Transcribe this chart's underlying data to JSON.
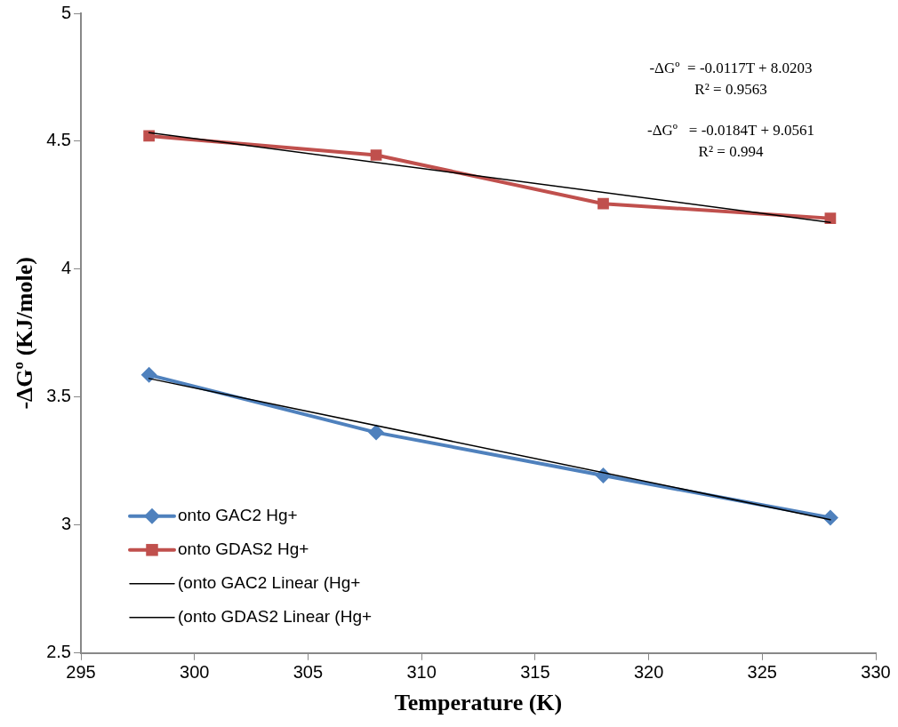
{
  "chart_data": {
    "type": "line",
    "xlabel": "Temperature (K)",
    "ylabel": "-ΔGº (KJ/mole)",
    "xlim": [
      295,
      330
    ],
    "xticks": [
      295,
      300,
      305,
      310,
      315,
      320,
      325,
      330
    ],
    "ylim": [
      2.5,
      5
    ],
    "yticks": [
      2.5,
      3,
      3.5,
      4,
      4.5,
      5
    ],
    "grid": false,
    "legend": "bottom left",
    "series": [
      {
        "name": "onto GAC2 Hg+",
        "color": "#4f81bd",
        "marker": "diamond",
        "x": [
          298,
          308,
          318,
          328
        ],
        "values": [
          3.587,
          3.362,
          3.194,
          3.029
        ]
      },
      {
        "name": "onto GDAS2 Hg+",
        "color": "#c0504d",
        "marker": "square",
        "x": [
          298,
          308,
          318,
          328
        ],
        "values": [
          4.521,
          4.446,
          4.256,
          4.199
        ]
      },
      {
        "name": "(onto GAC2 Linear (Hg+",
        "color": "#000000",
        "marker": "none",
        "x": [
          298,
          328
        ],
        "values": [
          3.573,
          3.021
        ]
      },
      {
        "name": "(onto GDAS2 Linear (Hg+",
        "color": "#000000",
        "marker": "none",
        "x": [
          298,
          328
        ],
        "values": [
          4.534,
          4.183
        ]
      }
    ],
    "annotations": [
      "-ΔGº  = -0.0117T + 8.0203",
      "R² = 0.9563",
      "-ΔGº   = -0.0184T + 9.0561",
      "R² = 0.994"
    ]
  }
}
